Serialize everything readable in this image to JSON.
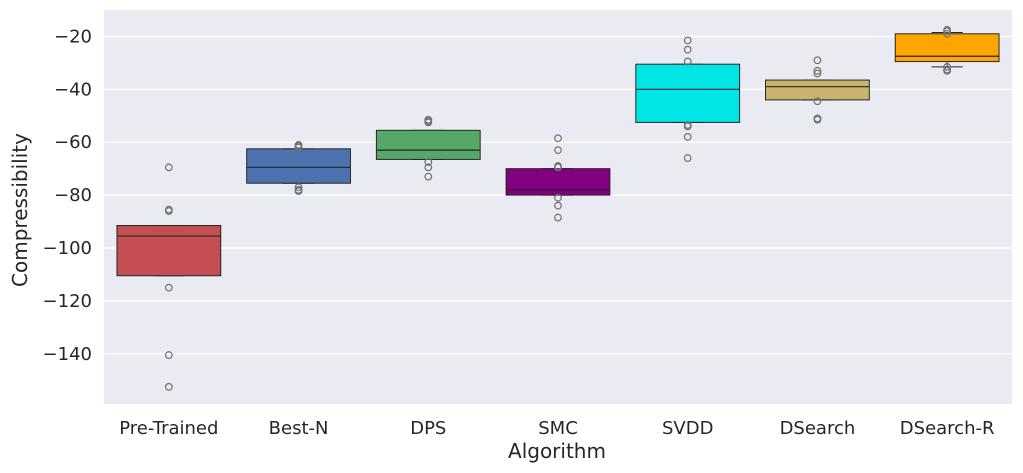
{
  "chart_data": {
    "type": "boxplot",
    "title": "",
    "xlabel": "Algorithm",
    "ylabel": "Compressibility",
    "ylim": [
      -159,
      -10
    ],
    "yticks": [
      -20,
      -40,
      -60,
      -80,
      -100,
      -120,
      -140
    ],
    "ytick_labels": [
      "−20",
      "−40",
      "−60",
      "−80",
      "−100",
      "−120",
      "−140"
    ],
    "grid": true,
    "categories": [
      "Pre-Trained",
      "Best-N",
      "DPS",
      "SMC",
      "SVDD",
      "DSearch",
      "DSearch-R"
    ],
    "boxes": [
      {
        "category": "Pre-Trained",
        "color": "#c44e52",
        "q1": -110.5,
        "median": -95.5,
        "q3": -91.5,
        "whisker_low": -110.5,
        "whisker_high": -91.5,
        "outliers": [
          -69.5,
          -85.5,
          -86,
          -115,
          -140.5,
          -152.5
        ]
      },
      {
        "category": "Best-N",
        "color": "#4c72b0",
        "q1": -75.5,
        "median": -69.5,
        "q3": -62.5,
        "whisker_low": -75.5,
        "whisker_high": -62.5,
        "outliers": [
          -61,
          -61.5,
          -62,
          -77,
          -78,
          -78.5
        ]
      },
      {
        "category": "DPS",
        "color": "#55a868",
        "q1": -66.5,
        "median": -63,
        "q3": -55.5,
        "whisker_low": -66.5,
        "whisker_high": -55.5,
        "outliers": [
          -51.5,
          -52,
          -52.5,
          -67.5,
          -69.5,
          -73
        ]
      },
      {
        "category": "SMC",
        "color": "#800080",
        "q1": -80,
        "median": -78,
        "q3": -70,
        "whisker_low": -80,
        "whisker_high": -70,
        "outliers": [
          -58.5,
          -63,
          -69,
          -69.5,
          -81,
          -84,
          -88.5
        ]
      },
      {
        "category": "SVDD",
        "color": "#00e5e5",
        "q1": -52.5,
        "median": -40,
        "q3": -30.5,
        "whisker_low": -52.5,
        "whisker_high": -30.5,
        "outliers": [
          -21.5,
          -25,
          -29.5,
          -53.5,
          -54,
          -58,
          -66
        ]
      },
      {
        "category": "DSearch",
        "color": "#c8b46e",
        "q1": -44,
        "median": -39,
        "q3": -36.5,
        "whisker_low": -44,
        "whisker_high": -36.5,
        "outliers": [
          -29,
          -33,
          -34,
          -44.5,
          -51,
          -51.5
        ]
      },
      {
        "category": "DSearch-R",
        "color": "#ffa500",
        "q1": -29.5,
        "median": -27.5,
        "q3": -19,
        "whisker_low": -31.5,
        "whisker_high": -18.5,
        "outliers": [
          -17.5,
          -18,
          -19,
          -31.5,
          -32.5,
          -33
        ]
      }
    ]
  }
}
